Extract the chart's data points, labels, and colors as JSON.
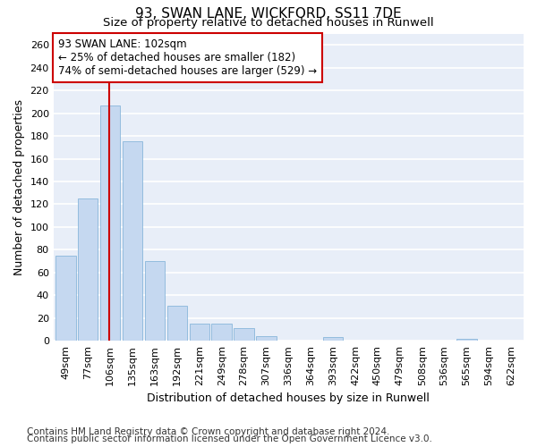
{
  "title_line1": "93, SWAN LANE, WICKFORD, SS11 7DE",
  "title_line2": "Size of property relative to detached houses in Runwell",
  "xlabel": "Distribution of detached houses by size in Runwell",
  "ylabel": "Number of detached properties",
  "categories": [
    "49sqm",
    "77sqm",
    "106sqm",
    "135sqm",
    "163sqm",
    "192sqm",
    "221sqm",
    "249sqm",
    "278sqm",
    "307sqm",
    "336sqm",
    "364sqm",
    "393sqm",
    "422sqm",
    "450sqm",
    "479sqm",
    "508sqm",
    "536sqm",
    "565sqm",
    "594sqm",
    "622sqm"
  ],
  "values": [
    75,
    125,
    207,
    175,
    70,
    31,
    15,
    15,
    11,
    4,
    0,
    0,
    3,
    0,
    0,
    0,
    0,
    0,
    2,
    0,
    0
  ],
  "bar_color": "#c5d8f0",
  "bar_edge_color": "#7aaed6",
  "background_color": "#e8eef8",
  "grid_color": "#ffffff",
  "vline_color": "#cc0000",
  "annotation_text": "93 SWAN LANE: 102sqm\n← 25% of detached houses are smaller (182)\n74% of semi-detached houses are larger (529) →",
  "annotation_box_color": "#ffffff",
  "annotation_box_edge": "#cc0000",
  "ylim": [
    0,
    270
  ],
  "yticks": [
    0,
    20,
    40,
    60,
    80,
    100,
    120,
    140,
    160,
    180,
    200,
    220,
    240,
    260
  ],
  "footer1": "Contains HM Land Registry data © Crown copyright and database right 2024.",
  "footer2": "Contains public sector information licensed under the Open Government Licence v3.0.",
  "title_fontsize": 11,
  "subtitle_fontsize": 9.5,
  "axis_label_fontsize": 9,
  "tick_fontsize": 8,
  "annotation_fontsize": 8.5,
  "footer_fontsize": 7.5
}
